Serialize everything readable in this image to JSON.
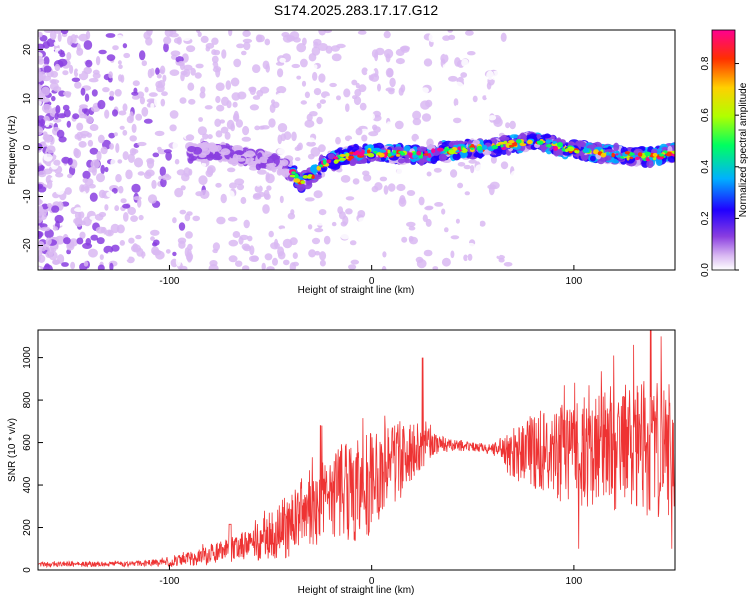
{
  "title": "S174.2025.283.17.17.G12",
  "chart_data": [
    {
      "type": "heatmap",
      "name": "spectrogram",
      "xlabel": "Height of straight line (km)",
      "ylabel": "Frequency (Hz)",
      "xlim": [
        -165,
        150
      ],
      "ylim": [
        -25,
        24
      ],
      "xticks": [
        -100,
        0,
        100
      ],
      "yticks": [
        20,
        10,
        0,
        -10,
        -20
      ],
      "colorbar": {
        "label": "Normalized spectral amplitude",
        "range": [
          0,
          0.93
        ],
        "ticks": [
          "0.0",
          "0.2",
          "0.4",
          "0.6",
          "0.8"
        ],
        "tick_values": [
          0,
          0.2,
          0.4,
          0.6,
          0.8
        ]
      },
      "ridge": {
        "x": [
          -75,
          -60,
          -50,
          -42,
          -35,
          -30,
          -25,
          -15,
          0,
          25,
          40,
          60,
          80,
          95,
          110,
          125,
          140,
          150
        ],
        "freq": [
          -1,
          -2,
          -3,
          -4,
          -7,
          -6,
          -3.5,
          -2,
          -1,
          -1.5,
          -0.5,
          0,
          1.5,
          0,
          -1,
          -1.5,
          -2,
          -1
        ],
        "peak_amplitude": 0.93
      },
      "colors": [
        "#ffffff",
        "#d9b8f2",
        "#8a3ee0",
        "#2000ff",
        "#00b0ff",
        "#00ff60",
        "#b0ff00",
        "#ffd000",
        "#ff3000",
        "#ff0090"
      ]
    },
    {
      "type": "line",
      "name": "snr",
      "xlabel": "Height of straight line (km)",
      "ylabel": "SNR (10 * v/v)",
      "xlim": [
        -165,
        150
      ],
      "ylim": [
        0,
        1130
      ],
      "xticks": [
        -100,
        0,
        100
      ],
      "yticks": [
        0,
        200,
        400,
        600,
        800,
        1000
      ],
      "series": [
        {
          "name": "SNR",
          "color": "#ee3333",
          "trend_x": [
            -165,
            -120,
            -100,
            -85,
            -70,
            -60,
            -50,
            -40,
            -30,
            -20,
            -10,
            0,
            10,
            20,
            30,
            40,
            50,
            60,
            70,
            80,
            90,
            100,
            110,
            120,
            130,
            140,
            150
          ],
          "trend_y": [
            25,
            28,
            35,
            60,
            90,
            120,
            160,
            220,
            280,
            330,
            370,
            420,
            480,
            560,
            600,
            590,
            580,
            570,
            540,
            560,
            560,
            540,
            550,
            560,
            570,
            560,
            560
          ],
          "noise": [
            12,
            12,
            20,
            40,
            60,
            80,
            110,
            160,
            200,
            220,
            240,
            260,
            200,
            150,
            60,
            30,
            20,
            25,
            120,
            180,
            220,
            250,
            260,
            300,
            320,
            330,
            300
          ],
          "spikes": [
            [
              -25,
              680
            ],
            [
              -70,
              215
            ],
            [
              25,
              1000
            ],
            [
              50,
              600
            ],
            [
              95,
              870
            ],
            [
              102,
              100
            ],
            [
              120,
              1010
            ],
            [
              130,
              1060
            ],
            [
              138,
              1130
            ],
            [
              143,
              1100
            ],
            [
              148,
              100
            ]
          ]
        }
      ]
    }
  ]
}
